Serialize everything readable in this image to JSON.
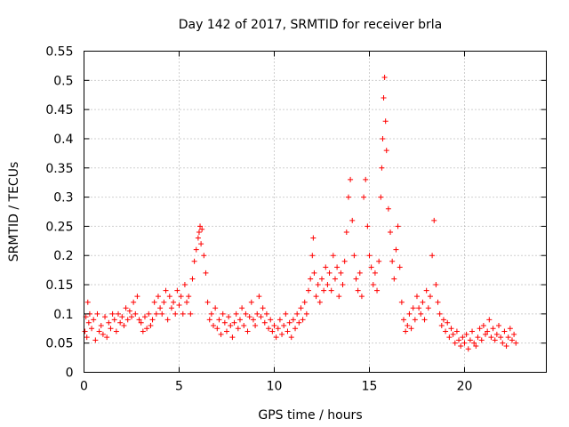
{
  "chart_data": {
    "type": "scatter",
    "title": "Day 142 of 2017, SRMTID for receiver brla",
    "xlabel": "GPS time / hours",
    "ylabel": "SRMTID / TECUs",
    "xlim": [
      0,
      24.3
    ],
    "ylim": [
      0,
      0.55
    ],
    "xticks": [
      0,
      5,
      10,
      15,
      20
    ],
    "xtick_labels": [
      "0",
      "5",
      "10",
      "15",
      "20"
    ],
    "yticks": [
      0,
      0.05,
      0.1,
      0.15,
      0.2,
      0.25,
      0.3,
      0.35,
      0.4,
      0.45,
      0.5,
      0.55
    ],
    "ytick_labels": [
      "0",
      "0.05",
      "0.1",
      "0.15",
      "0.2",
      "0.25",
      "0.3",
      "0.35",
      "0.4",
      "0.45",
      "0.5",
      "0.55"
    ],
    "grid": true,
    "marker": "+",
    "color": "#ff0000",
    "series": [
      {
        "values": [
          [
            0.05,
            0.07
          ],
          [
            0.1,
            0.095
          ],
          [
            0.15,
            0.06
          ],
          [
            0.2,
            0.12
          ],
          [
            0.25,
            0.085
          ],
          [
            0.3,
            0.1
          ],
          [
            0.4,
            0.075
          ],
          [
            0.5,
            0.09
          ],
          [
            0.6,
            0.055
          ],
          [
            0.7,
            0.1
          ],
          [
            0.8,
            0.07
          ],
          [
            0.9,
            0.08
          ],
          [
            1.0,
            0.065
          ],
          [
            1.1,
            0.095
          ],
          [
            1.2,
            0.06
          ],
          [
            1.3,
            0.085
          ],
          [
            1.4,
            0.075
          ],
          [
            1.5,
            0.1
          ],
          [
            1.6,
            0.09
          ],
          [
            1.7,
            0.07
          ],
          [
            1.8,
            0.1
          ],
          [
            1.9,
            0.085
          ],
          [
            2.0,
            0.095
          ],
          [
            2.1,
            0.08
          ],
          [
            2.2,
            0.11
          ],
          [
            2.3,
            0.09
          ],
          [
            2.4,
            0.105
          ],
          [
            2.5,
            0.095
          ],
          [
            2.6,
            0.12
          ],
          [
            2.7,
            0.1
          ],
          [
            2.8,
            0.13
          ],
          [
            2.9,
            0.09
          ],
          [
            3.0,
            0.085
          ],
          [
            3.1,
            0.07
          ],
          [
            3.2,
            0.095
          ],
          [
            3.3,
            0.075
          ],
          [
            3.4,
            0.1
          ],
          [
            3.5,
            0.08
          ],
          [
            3.6,
            0.09
          ],
          [
            3.7,
            0.12
          ],
          [
            3.8,
            0.1
          ],
          [
            3.9,
            0.13
          ],
          [
            4.0,
            0.11
          ],
          [
            4.1,
            0.1
          ],
          [
            4.2,
            0.12
          ],
          [
            4.3,
            0.14
          ],
          [
            4.4,
            0.09
          ],
          [
            4.5,
            0.13
          ],
          [
            4.6,
            0.11
          ],
          [
            4.7,
            0.12
          ],
          [
            4.8,
            0.1
          ],
          [
            4.9,
            0.14
          ],
          [
            5.0,
            0.115
          ],
          [
            5.1,
            0.13
          ],
          [
            5.2,
            0.1
          ],
          [
            5.3,
            0.15
          ],
          [
            5.4,
            0.12
          ],
          [
            5.5,
            0.13
          ],
          [
            5.6,
            0.1
          ],
          [
            5.7,
            0.16
          ],
          [
            5.8,
            0.19
          ],
          [
            5.9,
            0.21
          ],
          [
            6.0,
            0.23
          ],
          [
            6.05,
            0.24
          ],
          [
            6.1,
            0.25
          ],
          [
            6.15,
            0.22
          ],
          [
            6.2,
            0.245
          ],
          [
            6.3,
            0.2
          ],
          [
            6.4,
            0.17
          ],
          [
            6.5,
            0.12
          ],
          [
            6.6,
            0.09
          ],
          [
            6.7,
            0.1
          ],
          [
            6.8,
            0.08
          ],
          [
            6.9,
            0.11
          ],
          [
            7.0,
            0.075
          ],
          [
            7.1,
            0.09
          ],
          [
            7.2,
            0.065
          ],
          [
            7.3,
            0.1
          ],
          [
            7.4,
            0.085
          ],
          [
            7.5,
            0.07
          ],
          [
            7.6,
            0.095
          ],
          [
            7.7,
            0.08
          ],
          [
            7.8,
            0.06
          ],
          [
            7.9,
            0.085
          ],
          [
            8.0,
            0.1
          ],
          [
            8.1,
            0.075
          ],
          [
            8.2,
            0.09
          ],
          [
            8.3,
            0.11
          ],
          [
            8.4,
            0.08
          ],
          [
            8.5,
            0.1
          ],
          [
            8.6,
            0.07
          ],
          [
            8.7,
            0.095
          ],
          [
            8.8,
            0.12
          ],
          [
            8.9,
            0.09
          ],
          [
            9.0,
            0.08
          ],
          [
            9.1,
            0.1
          ],
          [
            9.2,
            0.13
          ],
          [
            9.3,
            0.095
          ],
          [
            9.4,
            0.11
          ],
          [
            9.5,
            0.085
          ],
          [
            9.6,
            0.1
          ],
          [
            9.7,
            0.075
          ],
          [
            9.8,
            0.09
          ],
          [
            9.9,
            0.07
          ],
          [
            10.0,
            0.08
          ],
          [
            10.1,
            0.06
          ],
          [
            10.2,
            0.075
          ],
          [
            10.3,
            0.09
          ],
          [
            10.4,
            0.065
          ],
          [
            10.5,
            0.08
          ],
          [
            10.6,
            0.1
          ],
          [
            10.7,
            0.07
          ],
          [
            10.8,
            0.085
          ],
          [
            10.9,
            0.06
          ],
          [
            11.0,
            0.09
          ],
          [
            11.1,
            0.075
          ],
          [
            11.2,
            0.1
          ],
          [
            11.3,
            0.085
          ],
          [
            11.4,
            0.11
          ],
          [
            11.5,
            0.09
          ],
          [
            11.6,
            0.12
          ],
          [
            11.7,
            0.1
          ],
          [
            11.8,
            0.14
          ],
          [
            11.9,
            0.16
          ],
          [
            12.0,
            0.2
          ],
          [
            12.05,
            0.23
          ],
          [
            12.1,
            0.17
          ],
          [
            12.2,
            0.13
          ],
          [
            12.3,
            0.15
          ],
          [
            12.4,
            0.12
          ],
          [
            12.5,
            0.16
          ],
          [
            12.6,
            0.14
          ],
          [
            12.7,
            0.18
          ],
          [
            12.8,
            0.15
          ],
          [
            12.9,
            0.17
          ],
          [
            13.0,
            0.14
          ],
          [
            13.1,
            0.2
          ],
          [
            13.2,
            0.16
          ],
          [
            13.3,
            0.18
          ],
          [
            13.4,
            0.13
          ],
          [
            13.5,
            0.17
          ],
          [
            13.6,
            0.15
          ],
          [
            13.7,
            0.19
          ],
          [
            13.8,
            0.24
          ],
          [
            13.9,
            0.3
          ],
          [
            14.0,
            0.33
          ],
          [
            14.1,
            0.26
          ],
          [
            14.2,
            0.2
          ],
          [
            14.3,
            0.16
          ],
          [
            14.4,
            0.14
          ],
          [
            14.5,
            0.17
          ],
          [
            14.6,
            0.13
          ],
          [
            14.7,
            0.3
          ],
          [
            14.8,
            0.33
          ],
          [
            14.9,
            0.25
          ],
          [
            15.0,
            0.2
          ],
          [
            15.1,
            0.18
          ],
          [
            15.2,
            0.15
          ],
          [
            15.3,
            0.17
          ],
          [
            15.4,
            0.14
          ],
          [
            15.5,
            0.19
          ],
          [
            15.6,
            0.3
          ],
          [
            15.65,
            0.35
          ],
          [
            15.7,
            0.4
          ],
          [
            15.75,
            0.47
          ],
          [
            15.8,
            0.505
          ],
          [
            15.85,
            0.43
          ],
          [
            15.9,
            0.38
          ],
          [
            16.0,
            0.28
          ],
          [
            16.1,
            0.24
          ],
          [
            16.2,
            0.19
          ],
          [
            16.3,
            0.16
          ],
          [
            16.4,
            0.21
          ],
          [
            16.5,
            0.25
          ],
          [
            16.6,
            0.18
          ],
          [
            16.7,
            0.12
          ],
          [
            16.8,
            0.09
          ],
          [
            16.9,
            0.07
          ],
          [
            17.0,
            0.08
          ],
          [
            17.1,
            0.1
          ],
          [
            17.2,
            0.075
          ],
          [
            17.3,
            0.11
          ],
          [
            17.4,
            0.09
          ],
          [
            17.5,
            0.13
          ],
          [
            17.6,
            0.11
          ],
          [
            17.7,
            0.1
          ],
          [
            17.8,
            0.12
          ],
          [
            17.9,
            0.09
          ],
          [
            18.0,
            0.14
          ],
          [
            18.1,
            0.11
          ],
          [
            18.2,
            0.13
          ],
          [
            18.3,
            0.2
          ],
          [
            18.4,
            0.26
          ],
          [
            18.5,
            0.15
          ],
          [
            18.6,
            0.12
          ],
          [
            18.7,
            0.1
          ],
          [
            18.8,
            0.08
          ],
          [
            18.9,
            0.09
          ],
          [
            19.0,
            0.07
          ],
          [
            19.1,
            0.085
          ],
          [
            19.2,
            0.06
          ],
          [
            19.3,
            0.075
          ],
          [
            19.4,
            0.065
          ],
          [
            19.5,
            0.05
          ],
          [
            19.6,
            0.07
          ],
          [
            19.7,
            0.055
          ],
          [
            19.8,
            0.045
          ],
          [
            19.9,
            0.06
          ],
          [
            20.0,
            0.05
          ],
          [
            20.1,
            0.065
          ],
          [
            20.2,
            0.04
          ],
          [
            20.3,
            0.055
          ],
          [
            20.4,
            0.07
          ],
          [
            20.5,
            0.05
          ],
          [
            20.6,
            0.045
          ],
          [
            20.7,
            0.06
          ],
          [
            20.8,
            0.075
          ],
          [
            20.9,
            0.055
          ],
          [
            21.0,
            0.08
          ],
          [
            21.1,
            0.065
          ],
          [
            21.2,
            0.07
          ],
          [
            21.3,
            0.09
          ],
          [
            21.4,
            0.06
          ],
          [
            21.5,
            0.075
          ],
          [
            21.6,
            0.055
          ],
          [
            21.7,
            0.065
          ],
          [
            21.8,
            0.08
          ],
          [
            21.9,
            0.06
          ],
          [
            22.0,
            0.05
          ],
          [
            22.1,
            0.07
          ],
          [
            22.2,
            0.045
          ],
          [
            22.3,
            0.06
          ],
          [
            22.4,
            0.075
          ],
          [
            22.5,
            0.055
          ],
          [
            22.6,
            0.065
          ],
          [
            22.7,
            0.05
          ]
        ]
      }
    ]
  }
}
